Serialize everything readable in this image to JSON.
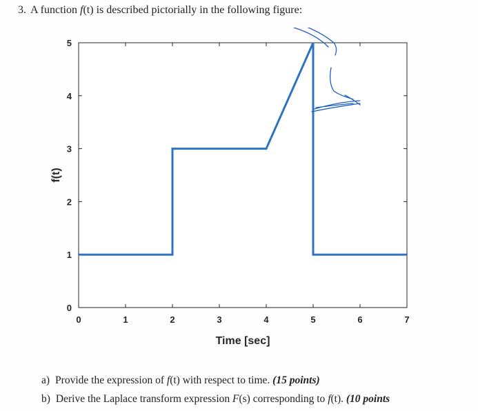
{
  "question": {
    "number": "3.",
    "text_before": "A function ",
    "func": "f",
    "func_arg": "(t)",
    "text_after": " is described pictorially in the following figure:"
  },
  "chart_data": {
    "type": "line",
    "x": [
      0,
      2,
      2,
      4,
      5,
      5,
      7
    ],
    "y": [
      1,
      1,
      3,
      3,
      5,
      1,
      1
    ],
    "xlabel": "Time [sec]",
    "ylabel": "f(t)",
    "xlim": [
      0,
      7
    ],
    "ylim": [
      0,
      5
    ],
    "xticks": [
      "0",
      "1",
      "2",
      "3",
      "4",
      "5",
      "6",
      "7"
    ],
    "yticks": [
      "0",
      "1",
      "2",
      "3",
      "4",
      "5"
    ],
    "grid": false,
    "line_color": "#2f72bf"
  },
  "parts": [
    {
      "label": "a)",
      "text_before": "Provide the expression of ",
      "func": "f",
      "func_arg": "(t)",
      "text_after": " with respect to time. ",
      "points": "(15 points)"
    },
    {
      "label": "b)",
      "text_before": "Derive the Laplace transform expression ",
      "func": "F",
      "func_arg": "(s)",
      "text_mid": " corresponding to ",
      "func2": "f",
      "func2_arg": "(t)",
      "text_after": ". ",
      "points": "(10 points"
    }
  ],
  "ink_color": "#1f5fc0"
}
